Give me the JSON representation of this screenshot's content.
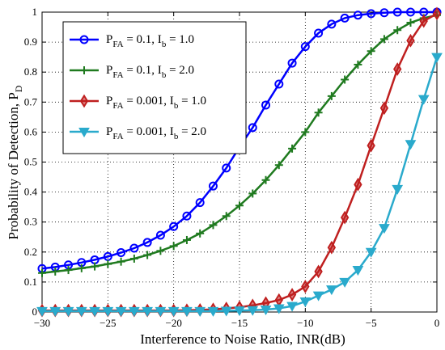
{
  "chart_data": {
    "type": "line",
    "xlabel": "Interference to Noise Ratio, INR(dB)",
    "ylabel_main": "Probability of Detection, P",
    "ylabel_sub": "D",
    "xlim": [
      -30,
      0
    ],
    "ylim": [
      0,
      1
    ],
    "grid": true,
    "legend_position": "top-left",
    "xticks": [
      -30,
      -25,
      -20,
      -15,
      -10,
      -5,
      0
    ],
    "xtick_labels": [
      "−30",
      "−25",
      "−20",
      "−15",
      "−10",
      "−5",
      "0"
    ],
    "yticks": [
      0,
      0.1,
      0.2,
      0.3,
      0.4,
      0.5,
      0.6,
      0.7,
      0.8,
      0.9,
      1
    ],
    "ytick_labels": [
      "0",
      "0.1",
      "0.2",
      "0.3",
      "0.4",
      "0.5",
      "0.6",
      "0.7",
      "0.8",
      "0.9",
      "1"
    ],
    "x": [
      -30,
      -29,
      -28,
      -27,
      -26,
      -25,
      -24,
      -23,
      -22,
      -21,
      -20,
      -19,
      -18,
      -17,
      -16,
      -15,
      -14,
      -13,
      -12,
      -11,
      -10,
      -9,
      -8,
      -7,
      -6,
      -5,
      -4,
      -3,
      -2,
      -1,
      0
    ],
    "series": [
      {
        "legend_parts": [
          "P",
          "FA",
          " = 0.1, I",
          "b",
          " = 1.0"
        ],
        "color": "#0000ff",
        "marker": "circle",
        "values": [
          0.145,
          0.15,
          0.157,
          0.165,
          0.174,
          0.185,
          0.198,
          0.213,
          0.232,
          0.256,
          0.285,
          0.32,
          0.365,
          0.42,
          0.48,
          0.55,
          0.615,
          0.69,
          0.76,
          0.83,
          0.885,
          0.93,
          0.96,
          0.98,
          0.99,
          0.995,
          0.998,
          1.0,
          1.0,
          1.0,
          1.0
        ]
      },
      {
        "legend_parts": [
          "P",
          "FA",
          " = 0.1, I",
          "b",
          " = 2.0"
        ],
        "color": "#1f7a1f",
        "marker": "plus",
        "values": [
          0.13,
          0.135,
          0.14,
          0.146,
          0.152,
          0.16,
          0.168,
          0.178,
          0.19,
          0.204,
          0.22,
          0.24,
          0.262,
          0.29,
          0.32,
          0.355,
          0.395,
          0.44,
          0.49,
          0.545,
          0.6,
          0.665,
          0.72,
          0.775,
          0.825,
          0.87,
          0.91,
          0.94,
          0.965,
          0.98,
          0.99
        ]
      },
      {
        "legend_parts": [
          "P",
          "FA",
          " = 0.001, I",
          "b",
          " = 1.0"
        ],
        "color": "#bf1f1f",
        "marker": "diamond",
        "values": [
          0.005,
          0.005,
          0.005,
          0.005,
          0.005,
          0.005,
          0.005,
          0.005,
          0.005,
          0.005,
          0.005,
          0.006,
          0.007,
          0.009,
          0.012,
          0.016,
          0.022,
          0.03,
          0.04,
          0.058,
          0.085,
          0.135,
          0.215,
          0.315,
          0.425,
          0.555,
          0.68,
          0.81,
          0.905,
          0.97,
          0.995
        ]
      },
      {
        "legend_parts": [
          "P",
          "FA",
          " = 0.001, I",
          "b",
          " = 2.0"
        ],
        "color": "#2aaacc",
        "marker": "triangle-down",
        "values": [
          0.003,
          0.003,
          0.003,
          0.003,
          0.003,
          0.003,
          0.003,
          0.003,
          0.003,
          0.003,
          0.003,
          0.003,
          0.003,
          0.003,
          0.004,
          0.005,
          0.006,
          0.008,
          0.012,
          0.02,
          0.035,
          0.055,
          0.075,
          0.1,
          0.14,
          0.2,
          0.28,
          0.41,
          0.56,
          0.71,
          0.85
        ]
      }
    ]
  }
}
